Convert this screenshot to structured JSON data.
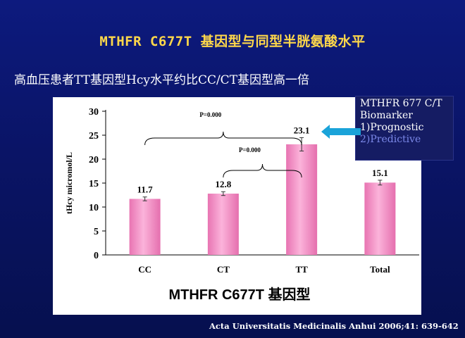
{
  "slide": {
    "title": "MTHFR C677T 基因型与同型半胱氨酸水平",
    "subtitle": "高血压患者TT基因型Hcy水平约比CC/CT基因型高一倍",
    "citation": "Acta Universitatis Medicinalis Anhui 2006;41: 639-642"
  },
  "callout": {
    "line1": "MTHFR 677 C/T",
    "line2": "Biomarker",
    "line3": "1)Prognostic",
    "line4": "2)Predictive",
    "arrow_color": "#1aa3d9"
  },
  "chart_data": {
    "type": "bar",
    "categories": [
      "CC",
      "CT",
      "TT",
      "Total"
    ],
    "values": [
      11.7,
      12.8,
      23.1,
      15.1
    ],
    "value_labels": [
      "11.7",
      "12.8",
      "23.1",
      "15.1"
    ],
    "error": [
      0.4,
      0.4,
      1.4,
      0.5
    ],
    "ylabel": "tHcy micromol/L",
    "xlabel": "MTHFR C677T 基因型",
    "ylim": [
      0,
      30
    ],
    "yticks": [
      "0",
      "5",
      "10",
      "15",
      "20",
      "25",
      "30"
    ],
    "annotations": [
      {
        "text": "P=0.000",
        "from": "CC",
        "to": "TT"
      },
      {
        "text": "P=0.000",
        "from": "CT",
        "to": "TT"
      }
    ],
    "bar_color": "#f28fc4",
    "grid": false
  }
}
